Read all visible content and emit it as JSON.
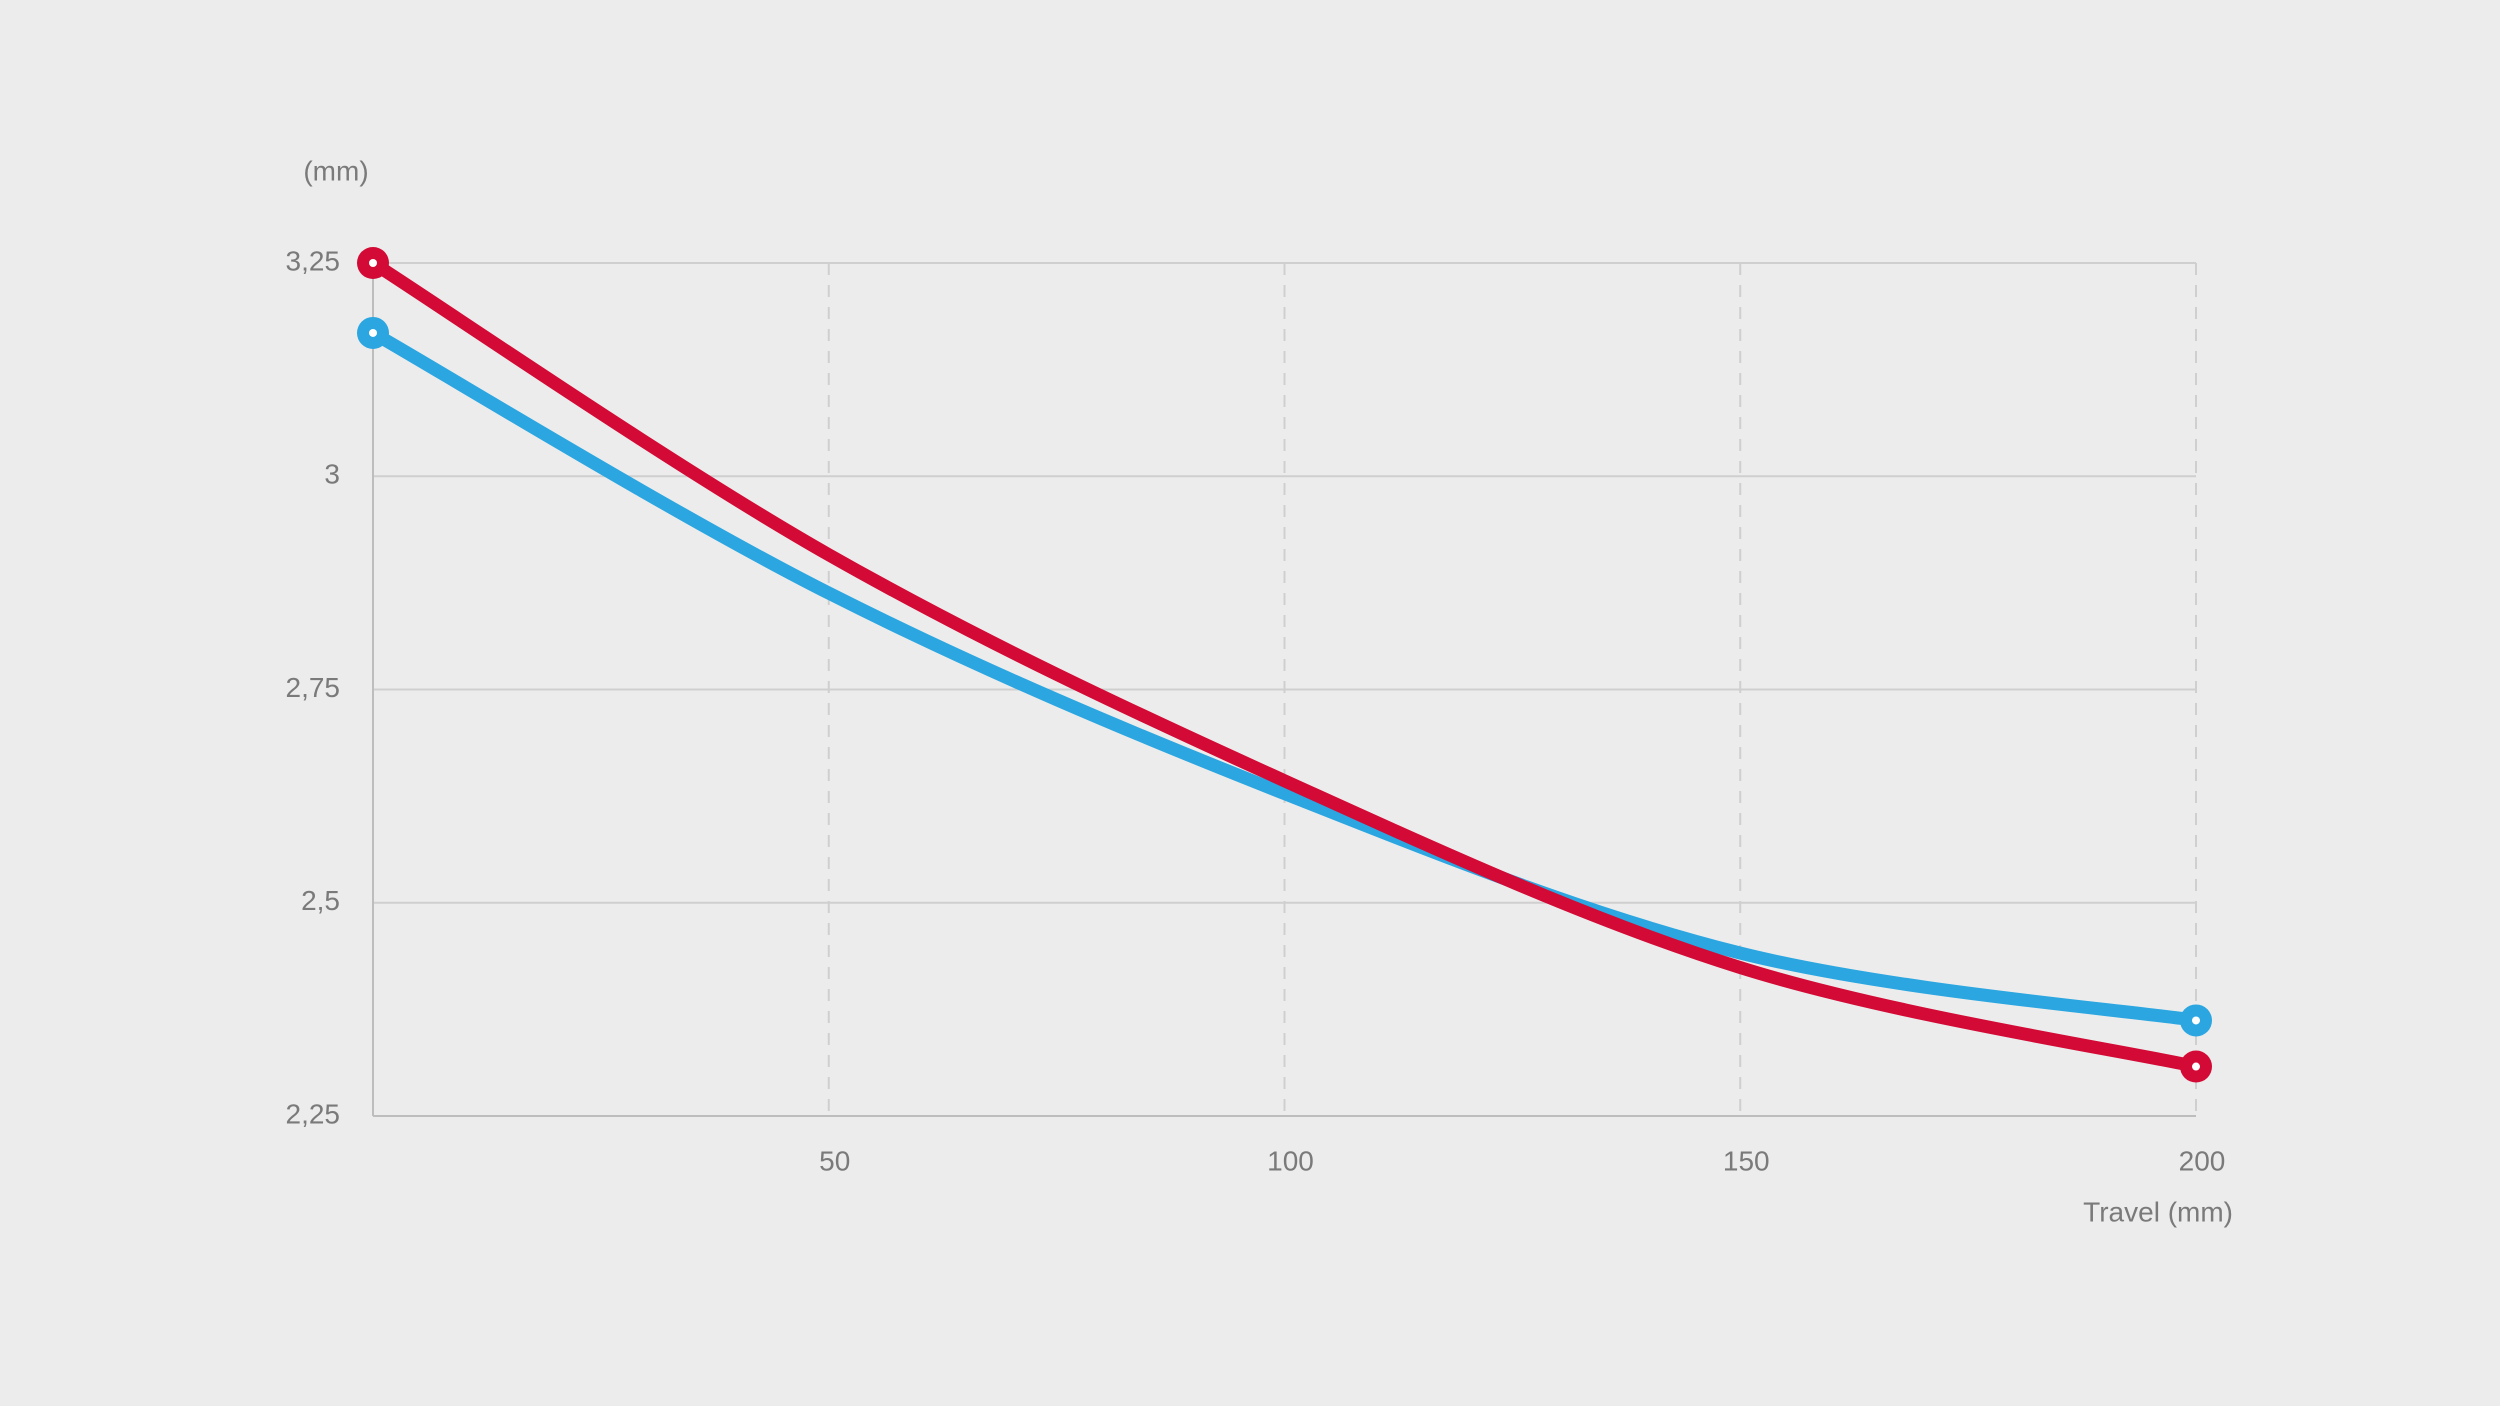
{
  "chart_data": {
    "type": "line",
    "y_label": "(mm)",
    "x_label": "Travel (mm)",
    "x": [
      0,
      50,
      100,
      150,
      200
    ],
    "series": [
      {
        "color": "#2ba6e1",
        "values": [
          3.168,
          2.863,
          2.628,
          2.441,
          2.362
        ]
      },
      {
        "color": "#d20a35",
        "values": [
          3.25,
          2.908,
          2.643,
          2.424,
          2.308
        ]
      }
    ],
    "xlim": [
      0,
      200
    ],
    "xticks": [
      50,
      100,
      150,
      200
    ],
    "ylim": [
      2.25,
      3.25
    ],
    "yticks": [
      {
        "value": 2.25,
        "label": "2,25"
      },
      {
        "value": 2.5,
        "label": "2,5"
      },
      {
        "value": 2.75,
        "label": "2,75"
      },
      3,
      {
        "value": 3.25,
        "label": "3,25"
      }
    ],
    "grid": true
  }
}
